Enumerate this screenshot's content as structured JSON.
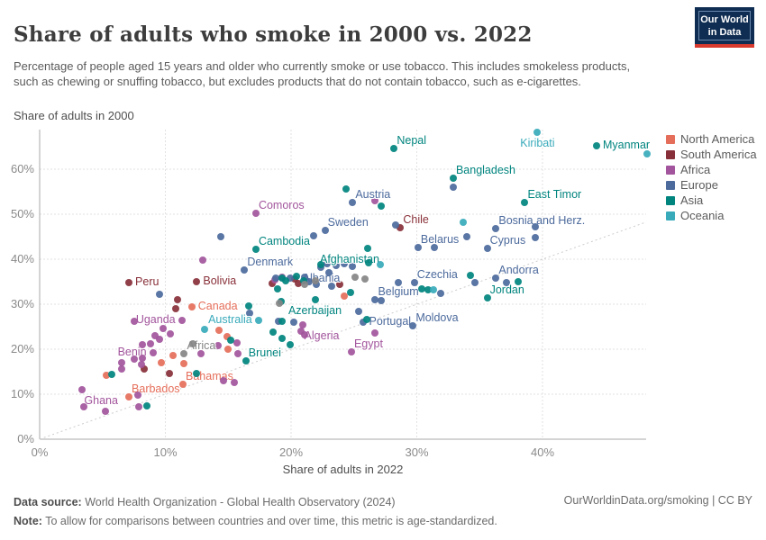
{
  "header": {
    "title": "Share of adults who smoke in 2000 vs. 2022",
    "subtitle": "Percentage of people aged 15 years and older who currently smoke or use tobacco. This includes smokeless products, such as chewing or snuffing tobacco, but excludes products that do not contain tobacco, such as e-cigarettes.",
    "logo_line1": "Our World",
    "logo_line2": "in Data"
  },
  "chart_data": {
    "type": "scatter",
    "title": "Share of adults who smoke in 2000 vs. 2022",
    "xlabel": "Share of adults in 2022",
    "ylabel": "Share of adults in 2000",
    "x_ticks": [
      "0%",
      "10%",
      "20%",
      "30%",
      "40%"
    ],
    "x_tick_values": [
      0,
      10,
      20,
      30,
      40
    ],
    "y_ticks": [
      "0%",
      "10%",
      "20%",
      "30%",
      "40%",
      "50%",
      "60%"
    ],
    "y_tick_values": [
      0,
      10,
      20,
      30,
      40,
      50,
      60
    ],
    "xlim": [
      0,
      48.3
    ],
    "ylim": [
      0,
      68.8
    ],
    "grid": true,
    "diagonal_reference_line": true,
    "legend_position": "right",
    "series": [
      {
        "name": "North America",
        "color": "#E56E5A",
        "in_legend": true,
        "points": [
          {
            "x": 12.1,
            "y": 29.4,
            "label": "Canada",
            "lp": "r"
          },
          {
            "x": 11.4,
            "y": 12.2,
            "label": "Bahamas",
            "lp": "tr"
          },
          {
            "x": 7.1,
            "y": 9.4,
            "label": "Barbados",
            "lp": "tr"
          },
          {
            "x": 14.3,
            "y": 24.2
          },
          {
            "x": 14.9,
            "y": 22.8
          },
          {
            "x": 24.2,
            "y": 31.8
          },
          {
            "x": 9.7,
            "y": 17.0
          },
          {
            "x": 10.6,
            "y": 18.6
          },
          {
            "x": 11.5,
            "y": 16.8
          },
          {
            "x": 5.3,
            "y": 14.2
          },
          {
            "x": 15.0,
            "y": 20.0
          }
        ]
      },
      {
        "name": "South America",
        "color": "#883039",
        "in_legend": true,
        "points": [
          {
            "x": 28.7,
            "y": 47.0,
            "label": "Chile",
            "lp": "tr"
          },
          {
            "x": 7.1,
            "y": 34.8,
            "label": "Peru",
            "lp": "r"
          },
          {
            "x": 12.5,
            "y": 35.0,
            "label": "Bolivia",
            "lp": "r"
          },
          {
            "x": 20.3,
            "y": 35.6
          },
          {
            "x": 20.6,
            "y": 34.6
          },
          {
            "x": 23.9,
            "y": 34.4
          },
          {
            "x": 11.0,
            "y": 31.0
          },
          {
            "x": 10.8,
            "y": 29.0
          },
          {
            "x": 8.3,
            "y": 15.6
          },
          {
            "x": 10.3,
            "y": 14.6
          },
          {
            "x": 18.5,
            "y": 34.6
          }
        ]
      },
      {
        "name": "Africa",
        "color": "#A2559C",
        "in_legend": true,
        "points": [
          {
            "x": 17.2,
            "y": 50.2,
            "label": "Comoros",
            "lp": "tr"
          },
          {
            "x": 20.9,
            "y": 25.4,
            "label": "Algeria",
            "lp": "br"
          },
          {
            "x": 24.8,
            "y": 19.4,
            "label": "Egypt",
            "lp": "tr"
          },
          {
            "x": 11.3,
            "y": 26.4,
            "label": "Uganda",
            "lp": "l"
          },
          {
            "x": 9.0,
            "y": 19.2,
            "label": "Benin",
            "lp": "l"
          },
          {
            "x": 3.4,
            "y": 11.0,
            "label": "Ghana",
            "lp": "br"
          },
          {
            "x": 13.0,
            "y": 39.8
          },
          {
            "x": 26.7,
            "y": 53.0
          },
          {
            "x": 19.3,
            "y": 36.0
          },
          {
            "x": 18.7,
            "y": 35.4
          },
          {
            "x": 20.8,
            "y": 24.0
          },
          {
            "x": 21.1,
            "y": 23.2
          },
          {
            "x": 26.7,
            "y": 23.6
          },
          {
            "x": 14.2,
            "y": 20.8
          },
          {
            "x": 7.5,
            "y": 26.2
          },
          {
            "x": 9.8,
            "y": 24.6
          },
          {
            "x": 10.4,
            "y": 23.4
          },
          {
            "x": 9.2,
            "y": 23.0
          },
          {
            "x": 9.5,
            "y": 22.2
          },
          {
            "x": 6.5,
            "y": 17.0
          },
          {
            "x": 6.5,
            "y": 15.6
          },
          {
            "x": 8.1,
            "y": 16.6
          },
          {
            "x": 7.8,
            "y": 9.8
          },
          {
            "x": 14.6,
            "y": 13.0
          },
          {
            "x": 15.5,
            "y": 12.6
          },
          {
            "x": 3.5,
            "y": 7.2
          },
          {
            "x": 5.2,
            "y": 6.2
          },
          {
            "x": 7.9,
            "y": 7.2
          },
          {
            "x": 15.7,
            "y": 21.4
          },
          {
            "x": 8.2,
            "y": 21.0
          },
          {
            "x": 8.8,
            "y": 21.2
          },
          {
            "x": 7.5,
            "y": 17.8
          },
          {
            "x": 8.2,
            "y": 18.0
          },
          {
            "x": 12.8,
            "y": 19.0
          },
          {
            "x": 15.8,
            "y": 19.0
          }
        ]
      },
      {
        "name": "Europe",
        "color": "#4C6A9C",
        "in_legend": true,
        "points": [
          {
            "x": 24.9,
            "y": 52.6,
            "label": "Austria",
            "lp": "tr"
          },
          {
            "x": 22.7,
            "y": 46.4,
            "label": "Sweden",
            "lp": "tr"
          },
          {
            "x": 36.3,
            "y": 46.8,
            "label": "Bosnia and Herz.",
            "lp": "tr"
          },
          {
            "x": 30.1,
            "y": 42.6,
            "label": "Belarus",
            "lp": "tr"
          },
          {
            "x": 35.6,
            "y": 42.4,
            "label": "Cyprus",
            "lp": "tr"
          },
          {
            "x": 16.3,
            "y": 37.6,
            "label": "Denmark",
            "lp": "tr"
          },
          {
            "x": 22.4,
            "y": 38.2,
            "label": "Albania",
            "lp": "b"
          },
          {
            "x": 36.3,
            "y": 35.8,
            "label": "Andorra",
            "lp": "tr"
          },
          {
            "x": 29.8,
            "y": 34.8,
            "label": "Czechia",
            "lp": "tr"
          },
          {
            "x": 26.7,
            "y": 31.0,
            "label": "Belgium",
            "lp": "tr"
          },
          {
            "x": 25.7,
            "y": 26.0,
            "label": "Portugal",
            "lp": "r"
          },
          {
            "x": 29.7,
            "y": 25.2,
            "label": "Moldova",
            "lp": "tr"
          },
          {
            "x": 32.9,
            "y": 56.0
          },
          {
            "x": 28.3,
            "y": 47.6
          },
          {
            "x": 21.8,
            "y": 45.2
          },
          {
            "x": 14.4,
            "y": 45.0
          },
          {
            "x": 34.0,
            "y": 45.0
          },
          {
            "x": 31.4,
            "y": 42.6
          },
          {
            "x": 39.4,
            "y": 47.2
          },
          {
            "x": 39.4,
            "y": 44.8
          },
          {
            "x": 34.6,
            "y": 34.8
          },
          {
            "x": 37.1,
            "y": 34.8
          },
          {
            "x": 28.5,
            "y": 34.8
          },
          {
            "x": 31.9,
            "y": 32.5
          },
          {
            "x": 27.2,
            "y": 30.8
          },
          {
            "x": 25.4,
            "y": 28.4
          },
          {
            "x": 22.9,
            "y": 39.0
          },
          {
            "x": 24.2,
            "y": 39.0
          },
          {
            "x": 24.9,
            "y": 38.4
          },
          {
            "x": 23.6,
            "y": 38.6
          },
          {
            "x": 18.8,
            "y": 35.8
          },
          {
            "x": 19.9,
            "y": 35.8
          },
          {
            "x": 21.1,
            "y": 36.0
          },
          {
            "x": 21.4,
            "y": 35.0
          },
          {
            "x": 22.0,
            "y": 34.4
          },
          {
            "x": 23.2,
            "y": 34.0
          },
          {
            "x": 23.0,
            "y": 37.0
          },
          {
            "x": 16.7,
            "y": 28.0
          },
          {
            "x": 19.0,
            "y": 26.2
          },
          {
            "x": 20.2,
            "y": 26.0
          },
          {
            "x": 9.5,
            "y": 32.2
          }
        ]
      },
      {
        "name": "Asia",
        "color": "#00847E",
        "in_legend": true,
        "points": [
          {
            "x": 28.2,
            "y": 64.6,
            "label": "Nepal",
            "lp": "tr"
          },
          {
            "x": 44.3,
            "y": 65.2,
            "label": "Myanmar",
            "lp": "r"
          },
          {
            "x": 32.9,
            "y": 58.0,
            "label": "Bangladesh",
            "lp": "tr"
          },
          {
            "x": 38.6,
            "y": 52.6,
            "label": "East Timor",
            "lp": "tr"
          },
          {
            "x": 17.2,
            "y": 42.2,
            "label": "Cambodia",
            "lp": "tr"
          },
          {
            "x": 26.1,
            "y": 42.4,
            "label": "Afghanistan",
            "lp": "bl"
          },
          {
            "x": 35.6,
            "y": 31.4,
            "label": "Jordan",
            "lp": "tr"
          },
          {
            "x": 21.9,
            "y": 31.0,
            "label": "Azerbaijan",
            "lp": "b"
          },
          {
            "x": 16.4,
            "y": 17.4,
            "label": "Brunei",
            "lp": "tr"
          },
          {
            "x": 24.4,
            "y": 55.6
          },
          {
            "x": 27.2,
            "y": 51.8
          },
          {
            "x": 34.3,
            "y": 36.4
          },
          {
            "x": 38.1,
            "y": 35.0
          },
          {
            "x": 30.4,
            "y": 33.5
          },
          {
            "x": 30.9,
            "y": 33.3
          },
          {
            "x": 19.3,
            "y": 35.8
          },
          {
            "x": 19.6,
            "y": 35.2
          },
          {
            "x": 20.4,
            "y": 36.2
          },
          {
            "x": 18.9,
            "y": 33.4
          },
          {
            "x": 19.2,
            "y": 30.6
          },
          {
            "x": 16.6,
            "y": 29.6
          },
          {
            "x": 19.3,
            "y": 26.2
          },
          {
            "x": 18.6,
            "y": 23.8
          },
          {
            "x": 19.3,
            "y": 22.4
          },
          {
            "x": 19.9,
            "y": 21.0
          },
          {
            "x": 24.7,
            "y": 32.6
          },
          {
            "x": 26.0,
            "y": 26.6
          },
          {
            "x": 21.0,
            "y": 35.2
          },
          {
            "x": 15.2,
            "y": 22.0
          },
          {
            "x": 12.5,
            "y": 14.6
          },
          {
            "x": 8.5,
            "y": 7.4
          },
          {
            "x": 22.4,
            "y": 38.8
          },
          {
            "x": 26.2,
            "y": 39.2
          },
          {
            "x": 5.7,
            "y": 14.4
          }
        ]
      },
      {
        "name": "Oceania",
        "color": "#38AABA",
        "in_legend": true,
        "points": [
          {
            "x": 39.6,
            "y": 68.2,
            "label": "Kiribati",
            "lp": "b"
          },
          {
            "x": 17.4,
            "y": 26.4,
            "label": "Australia",
            "lp": "l"
          },
          {
            "x": 48.3,
            "y": 63.4
          },
          {
            "x": 33.7,
            "y": 48.2
          },
          {
            "x": 27.1,
            "y": 38.8
          },
          {
            "x": 31.3,
            "y": 33.2
          },
          {
            "x": 13.1,
            "y": 24.4
          }
        ]
      },
      {
        "name": "Other",
        "color": "#858585",
        "in_legend": false,
        "points": [
          {
            "x": 11.5,
            "y": 19.0,
            "label": "Africa",
            "lp": "tr"
          },
          {
            "x": 21.9,
            "y": 35.2
          },
          {
            "x": 25.1,
            "y": 36.0
          },
          {
            "x": 25.9,
            "y": 35.6
          },
          {
            "x": 19.1,
            "y": 30.2
          },
          {
            "x": 21.1,
            "y": 34.4
          },
          {
            "x": 12.2,
            "y": 21.2
          }
        ]
      }
    ]
  },
  "footer": {
    "source_label": "Data source:",
    "source_text": " World Health Organization - Global Health Observatory (2024)",
    "link_text": "OurWorldinData.org/smoking | CC BY",
    "note_label": "Note:",
    "note_text": " To allow for comparisons between countries and over time, this metric is age-standardized."
  }
}
